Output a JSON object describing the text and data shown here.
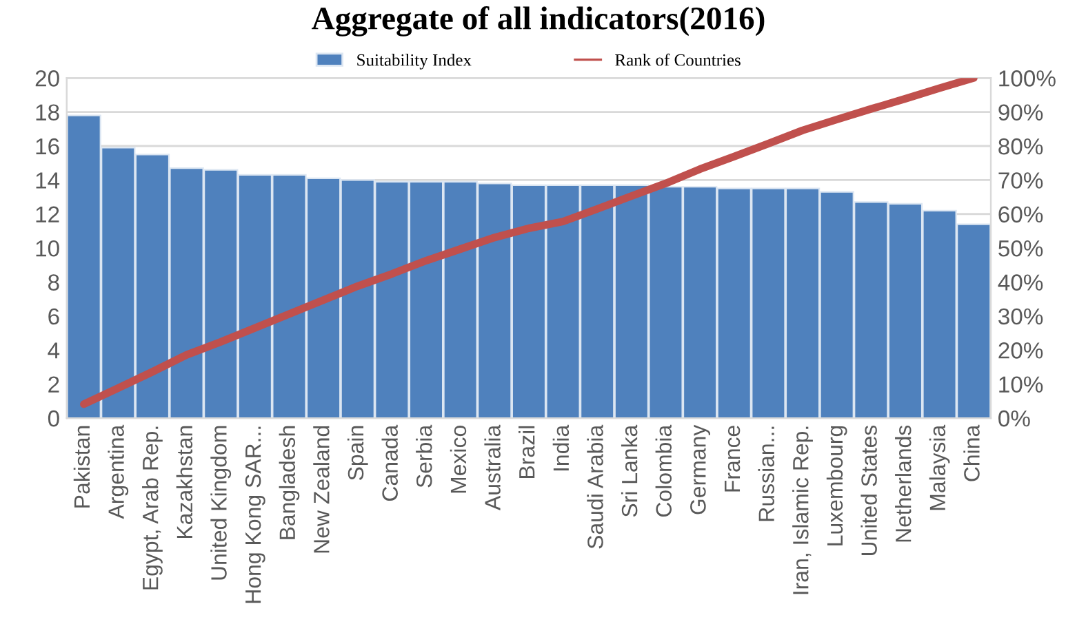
{
  "chart_data": {
    "type": "bar",
    "title": "Aggregate of all indicators(2016)",
    "categories": [
      "Pakistan",
      "Argentina",
      "Egypt, Arab Rep.",
      "Kazakhstan",
      "United Kingdom",
      "Hong Kong SAR...",
      "Bangladesh",
      "New Zealand",
      "Spain",
      "Canada",
      "Serbia",
      "Mexico",
      "Australia",
      "Brazil",
      "India",
      "Saudi Arabia",
      "Sri Lanka",
      "Colombia",
      "Germany",
      "France",
      "Russian...",
      "Iran, Islamic Rep.",
      "Luxembourg",
      "United States",
      "Netherlands",
      "Malaysia",
      "China"
    ],
    "series": [
      {
        "name": "Suitability Index",
        "color": "#4f81bd",
        "values": [
          17.8,
          15.9,
          15.5,
          14.7,
          14.6,
          14.3,
          14.3,
          14.1,
          14.0,
          13.9,
          13.9,
          13.9,
          13.8,
          13.7,
          13.7,
          13.7,
          13.7,
          13.6,
          13.6,
          13.5,
          13.5,
          13.5,
          13.3,
          12.7,
          12.6,
          12.2,
          11.4
        ]
      },
      {
        "name": "Rank of Countries",
        "type": "line",
        "axis": "y2",
        "color": "#c0504d",
        "values": [
          4.1,
          8.8,
          13.6,
          18.6,
          22.4,
          26.5,
          30.6,
          34.7,
          38.8,
          42.4,
          46.3,
          49.7,
          53.1,
          55.8,
          57.8,
          61.5,
          65.3,
          69,
          73.2,
          76.9,
          80.7,
          84.6,
          87.8,
          90.9,
          93.9,
          97,
          100
        ]
      }
    ],
    "ylim": [
      0,
      20
    ],
    "yticks": [
      0,
      2,
      4,
      6,
      8,
      10,
      12,
      14,
      16,
      18,
      20
    ],
    "y2lim": [
      0,
      100
    ],
    "y2ticks": [
      {
        "value": 0,
        "label": "0%"
      },
      {
        "value": 10,
        "label": "10%"
      },
      {
        "value": 20,
        "label": "20%"
      },
      {
        "value": 30,
        "label": "30%"
      },
      {
        "value": 40,
        "label": "40%"
      },
      {
        "value": 50,
        "label": "50%"
      },
      {
        "value": 60,
        "label": "60%"
      },
      {
        "value": 70,
        "label": "70%"
      },
      {
        "value": 80,
        "label": "80%"
      },
      {
        "value": 90,
        "label": "90%"
      },
      {
        "value": 100,
        "label": "100%"
      }
    ],
    "grid": "y",
    "legend": "top",
    "line_style": "solid",
    "marker": "none"
  }
}
